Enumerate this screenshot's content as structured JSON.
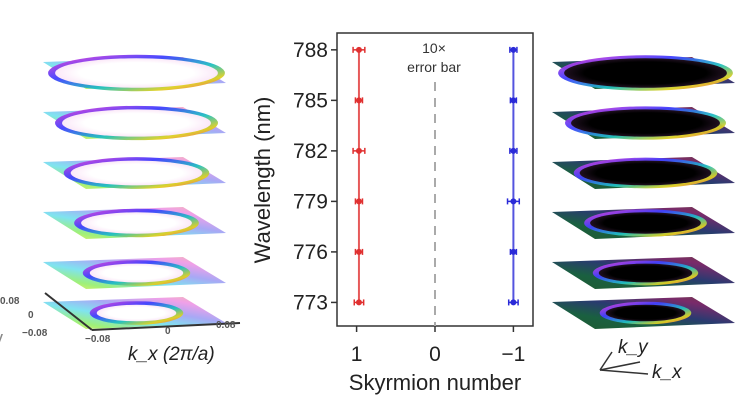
{
  "chart_data": {
    "type": "scatter",
    "xlabel": "Skyrmion number",
    "ylabel": "Wavelength (nm)",
    "xlim": [
      1.25,
      -1.25
    ],
    "ylim": [
      771.6,
      789.0
    ],
    "x_ticks": [
      "1",
      "0",
      "−1"
    ],
    "x_tick_values": [
      1,
      0,
      -1
    ],
    "y_ticks": [
      "788",
      "785",
      "782",
      "779",
      "776",
      "773"
    ],
    "y_tick_values": [
      788,
      785,
      782,
      779,
      776,
      773
    ],
    "annotation": [
      "10×",
      "error bar"
    ],
    "reference_line": {
      "x": 0,
      "style": "dashed",
      "color": "#aaaaaa"
    },
    "grid": false,
    "series": [
      {
        "color": "#e03030",
        "points": [
          {
            "y": 788,
            "x": 0.97,
            "err": 0.05
          },
          {
            "y": 785,
            "x": 0.97,
            "err": 0.03
          },
          {
            "y": 782,
            "x": 0.97,
            "err": 0.05
          },
          {
            "y": 779,
            "x": 0.97,
            "err": 0.03
          },
          {
            "y": 776,
            "x": 0.97,
            "err": 0.03
          },
          {
            "y": 773,
            "x": 0.97,
            "err": 0.04
          }
        ]
      },
      {
        "color": "#2a2ad8",
        "points": [
          {
            "y": 788,
            "x": -1.0,
            "err": 0.03
          },
          {
            "y": 785,
            "x": -1.0,
            "err": 0.01
          },
          {
            "y": 782,
            "x": -1.0,
            "err": 0.03
          },
          {
            "y": 779,
            "x": -1.0,
            "err": 0.05
          },
          {
            "y": 776,
            "x": -1.0,
            "err": 0.02
          },
          {
            "y": 773,
            "x": -1.0,
            "err": 0.04
          }
        ]
      }
    ]
  },
  "left_panel": {
    "xaxis_label": "k_x (2π/a)",
    "kx_ticks": [
      "−0.08",
      "0",
      "0.08"
    ],
    "ky_ticks": [
      "0.08",
      "0",
      "−0.08"
    ],
    "ky_label": "y"
  },
  "right_panel": {
    "axis_ky": "k_y",
    "axis_kx": "k_x"
  }
}
